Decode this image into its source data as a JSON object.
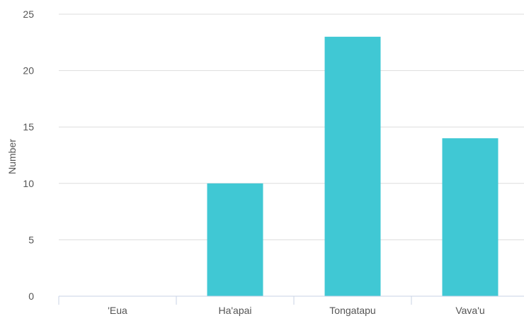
{
  "chart_data": {
    "type": "bar",
    "title": "",
    "xlabel": "",
    "ylabel": "Number",
    "categories": [
      "'Eua",
      "Ha'apai",
      "Tongatapu",
      "Vava'u"
    ],
    "values": [
      0,
      10,
      23,
      14
    ],
    "ylim": [
      0,
      25
    ],
    "yticks": [
      "0",
      "5",
      "10",
      "15",
      "20",
      "25"
    ],
    "grid": true,
    "legend": "none",
    "colors": {
      "bar": "#40c8d4",
      "grid": "#dddddd",
      "axis": "#c8d3e6",
      "text": "#555555"
    }
  }
}
